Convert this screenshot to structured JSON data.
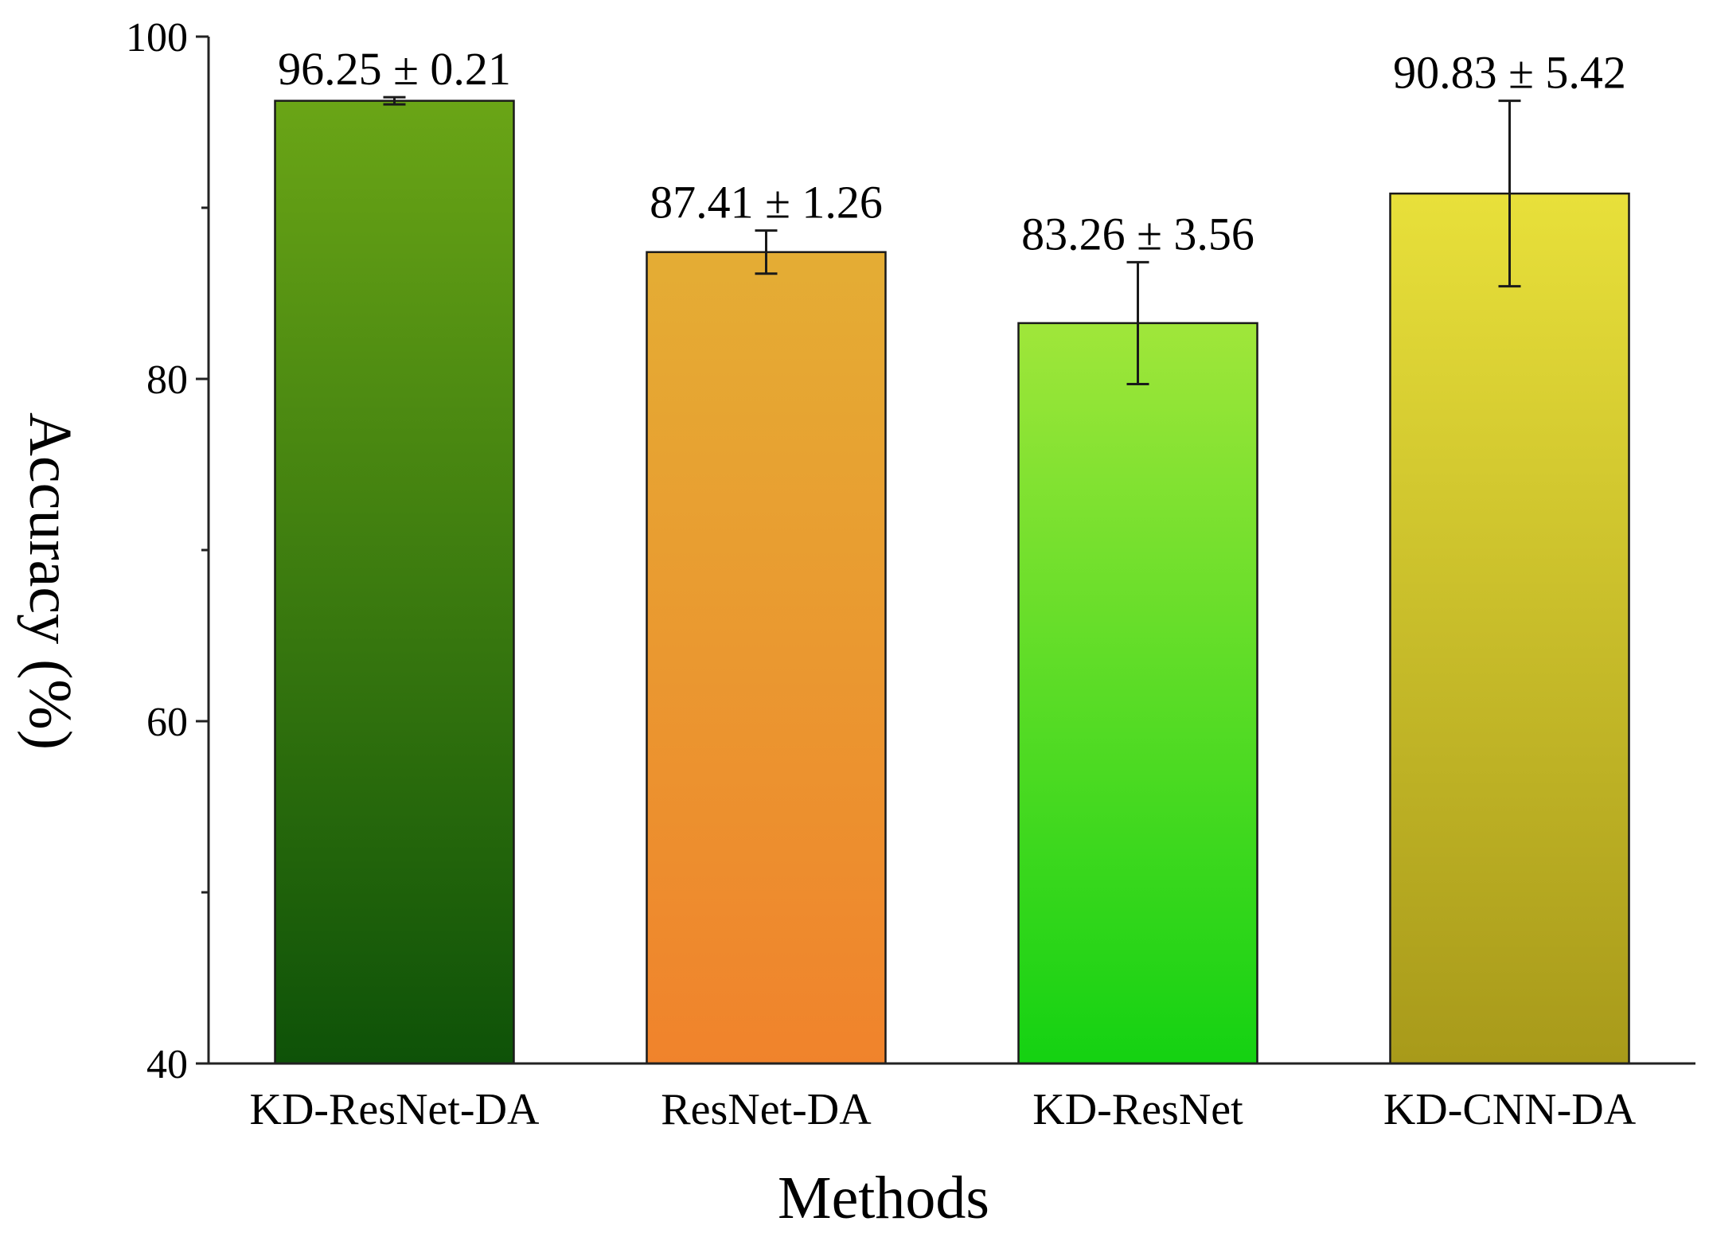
{
  "chart_data": {
    "type": "bar",
    "title": "",
    "xlabel": "Methods",
    "ylabel": "Accuracy (%)",
    "ylim": [
      40,
      100
    ],
    "yticks": [
      40,
      60,
      80,
      100
    ],
    "grid": false,
    "categories": [
      "KD-ResNet-DA",
      "ResNet-DA",
      "KD-ResNet",
      "KD-CNN-DA"
    ],
    "values": [
      96.25,
      87.41,
      83.26,
      90.83
    ],
    "errors": [
      0.21,
      1.26,
      3.56,
      5.42
    ],
    "data_labels": [
      "96.25 ± 0.21",
      "87.41 ± 1.26",
      "83.26 ± 3.56",
      "90.83 ± 5.42"
    ],
    "tick_labels": [
      "40",
      "60",
      "80",
      "100"
    ],
    "colors": [
      {
        "top": "#6aa516",
        "bottom": "#0e5208"
      },
      {
        "top": "#e4ad34",
        "bottom": "#f0832c"
      },
      {
        "top": "#a0e63a",
        "bottom": "#14d212"
      },
      {
        "top": "#e8e03a",
        "bottom": "#a89a1a"
      }
    ]
  }
}
